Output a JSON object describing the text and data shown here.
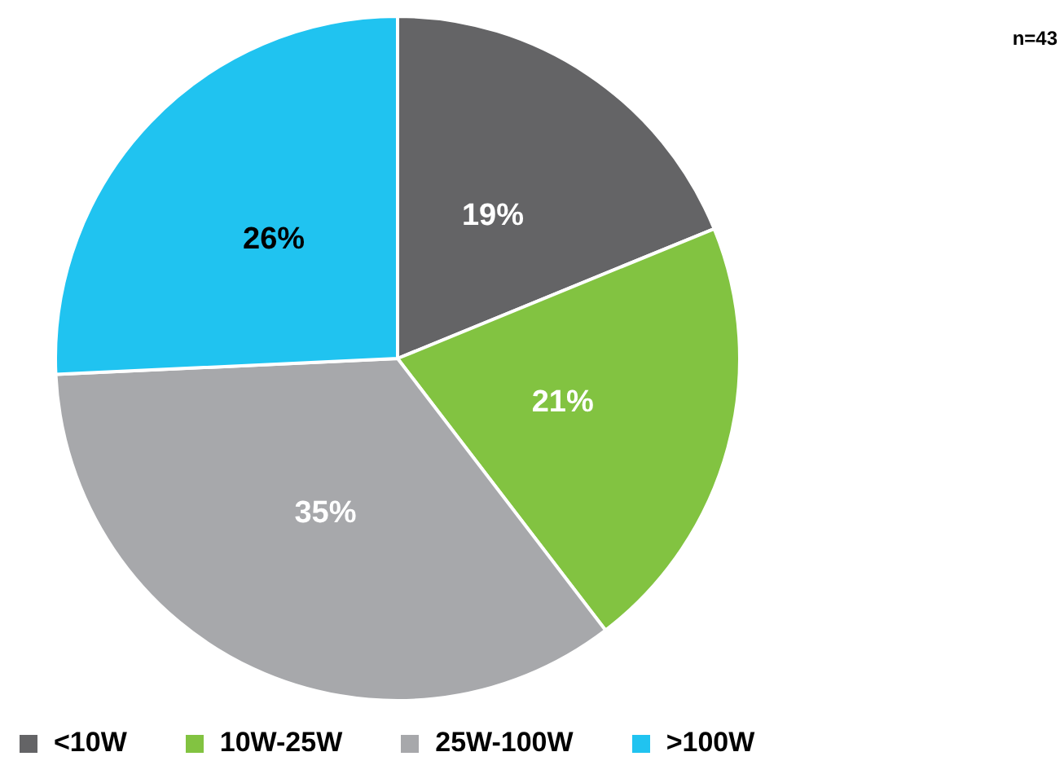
{
  "chart_data": {
    "type": "pie",
    "categories": [
      "<10W",
      "10W-25W",
      "25W-100W",
      ">100W"
    ],
    "values": [
      19,
      21,
      35,
      26
    ],
    "value_labels": [
      "19%",
      "21%",
      "35%",
      "26%"
    ],
    "colors": [
      "#646466",
      "#82c341",
      "#a7a8ab",
      "#20c3f0"
    ],
    "legend": "bottom left",
    "annotations": [
      "n=43"
    ]
  }
}
